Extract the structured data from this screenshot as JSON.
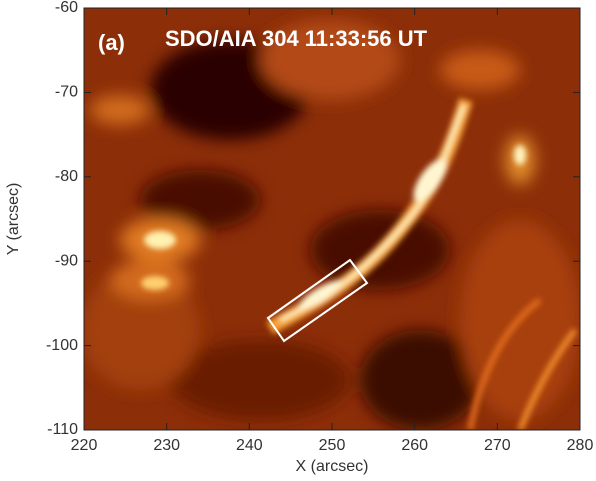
{
  "chart_data": {
    "type": "image",
    "panel_label": "(a)",
    "title": "SDO/AIA 304 11:33:56 UT",
    "xlabel": "X (arcsec)",
    "ylabel": "Y (arcsec)",
    "xlim": [
      220,
      280
    ],
    "ylim": [
      -110,
      -60
    ],
    "xticks": [
      220,
      230,
      240,
      250,
      260,
      270,
      280
    ],
    "yticks": [
      -110,
      -100,
      -90,
      -80,
      -70,
      -60
    ]
  }
}
